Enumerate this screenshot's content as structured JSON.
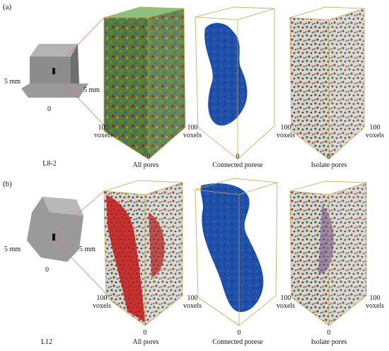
{
  "panels": [
    {
      "letter": "(a)",
      "sample_name": "L8-2",
      "sample_dims": [
        "5 mm",
        "5 mm"
      ],
      "origin": "0",
      "axis_length": "100",
      "axis_unit": "voxels",
      "captions": [
        "All pores",
        "Connected porese",
        "Isolate pores"
      ]
    },
    {
      "letter": "(b)",
      "sample_name": "L12",
      "sample_dims": [
        "5 mm",
        "5 mm"
      ],
      "origin": "0",
      "axis_length": "100",
      "axis_unit": "voxels",
      "captions": [
        "All pores",
        "Connected porese",
        "Isolate pores"
      ]
    }
  ],
  "colors": {
    "box_frame": "#c9a24a",
    "connected_pores": "#1f4fa8",
    "pores_green": "#3f9a2a",
    "pores_red": "#c01818",
    "pores_purple": "#6a4a8a",
    "sample_gray": "#8c8c8c",
    "callout_line": "#d27a7a"
  }
}
